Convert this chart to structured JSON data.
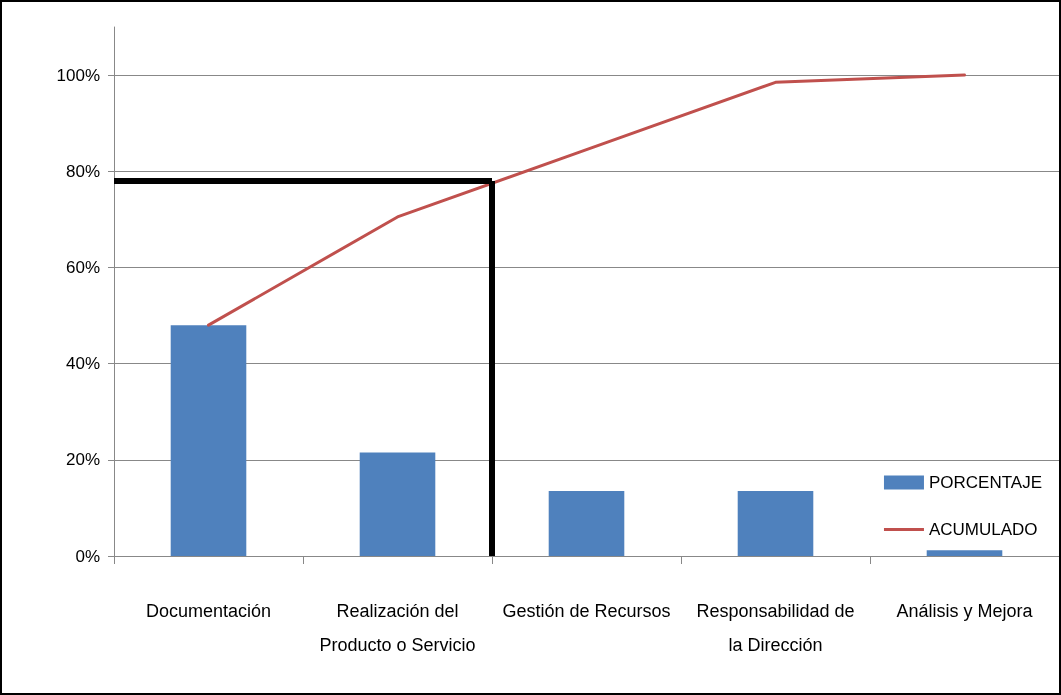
{
  "chart_data": {
    "type": "bar",
    "categories": [
      "Documentación",
      "Realización del\nProducto o Servicio",
      "Gestión de Recursos",
      "Responsabilidad de\nla Dirección",
      "Análisis y Mejora"
    ],
    "series": [
      {
        "name": "PORCENTAJE",
        "color": "#4f81bd",
        "values": [
          48,
          21.5,
          13.5,
          13.5,
          1.2
        ]
      },
      {
        "name": "ACUMULADO",
        "type": "line",
        "color": "#c0504d",
        "values": [
          48,
          70.5,
          84.5,
          98.5,
          100
        ]
      }
    ],
    "ylim": [
      0,
      110
    ],
    "yticks": [
      {
        "value": 0,
        "label": "0%"
      },
      {
        "value": 20,
        "label": "20%"
      },
      {
        "value": 40,
        "label": "40%"
      },
      {
        "value": 60,
        "label": "60%"
      },
      {
        "value": 80,
        "label": "80%"
      },
      {
        "value": 100,
        "label": "100%"
      }
    ],
    "ref_lines": [
      {
        "axis": "y",
        "value": 78,
        "color": "#000000"
      },
      {
        "axis": "x",
        "value": "Gestión de Recursos",
        "color": "#000000"
      }
    ],
    "grid": "y",
    "legend": "bottom right",
    "marker": "none",
    "line_style": "solid"
  }
}
